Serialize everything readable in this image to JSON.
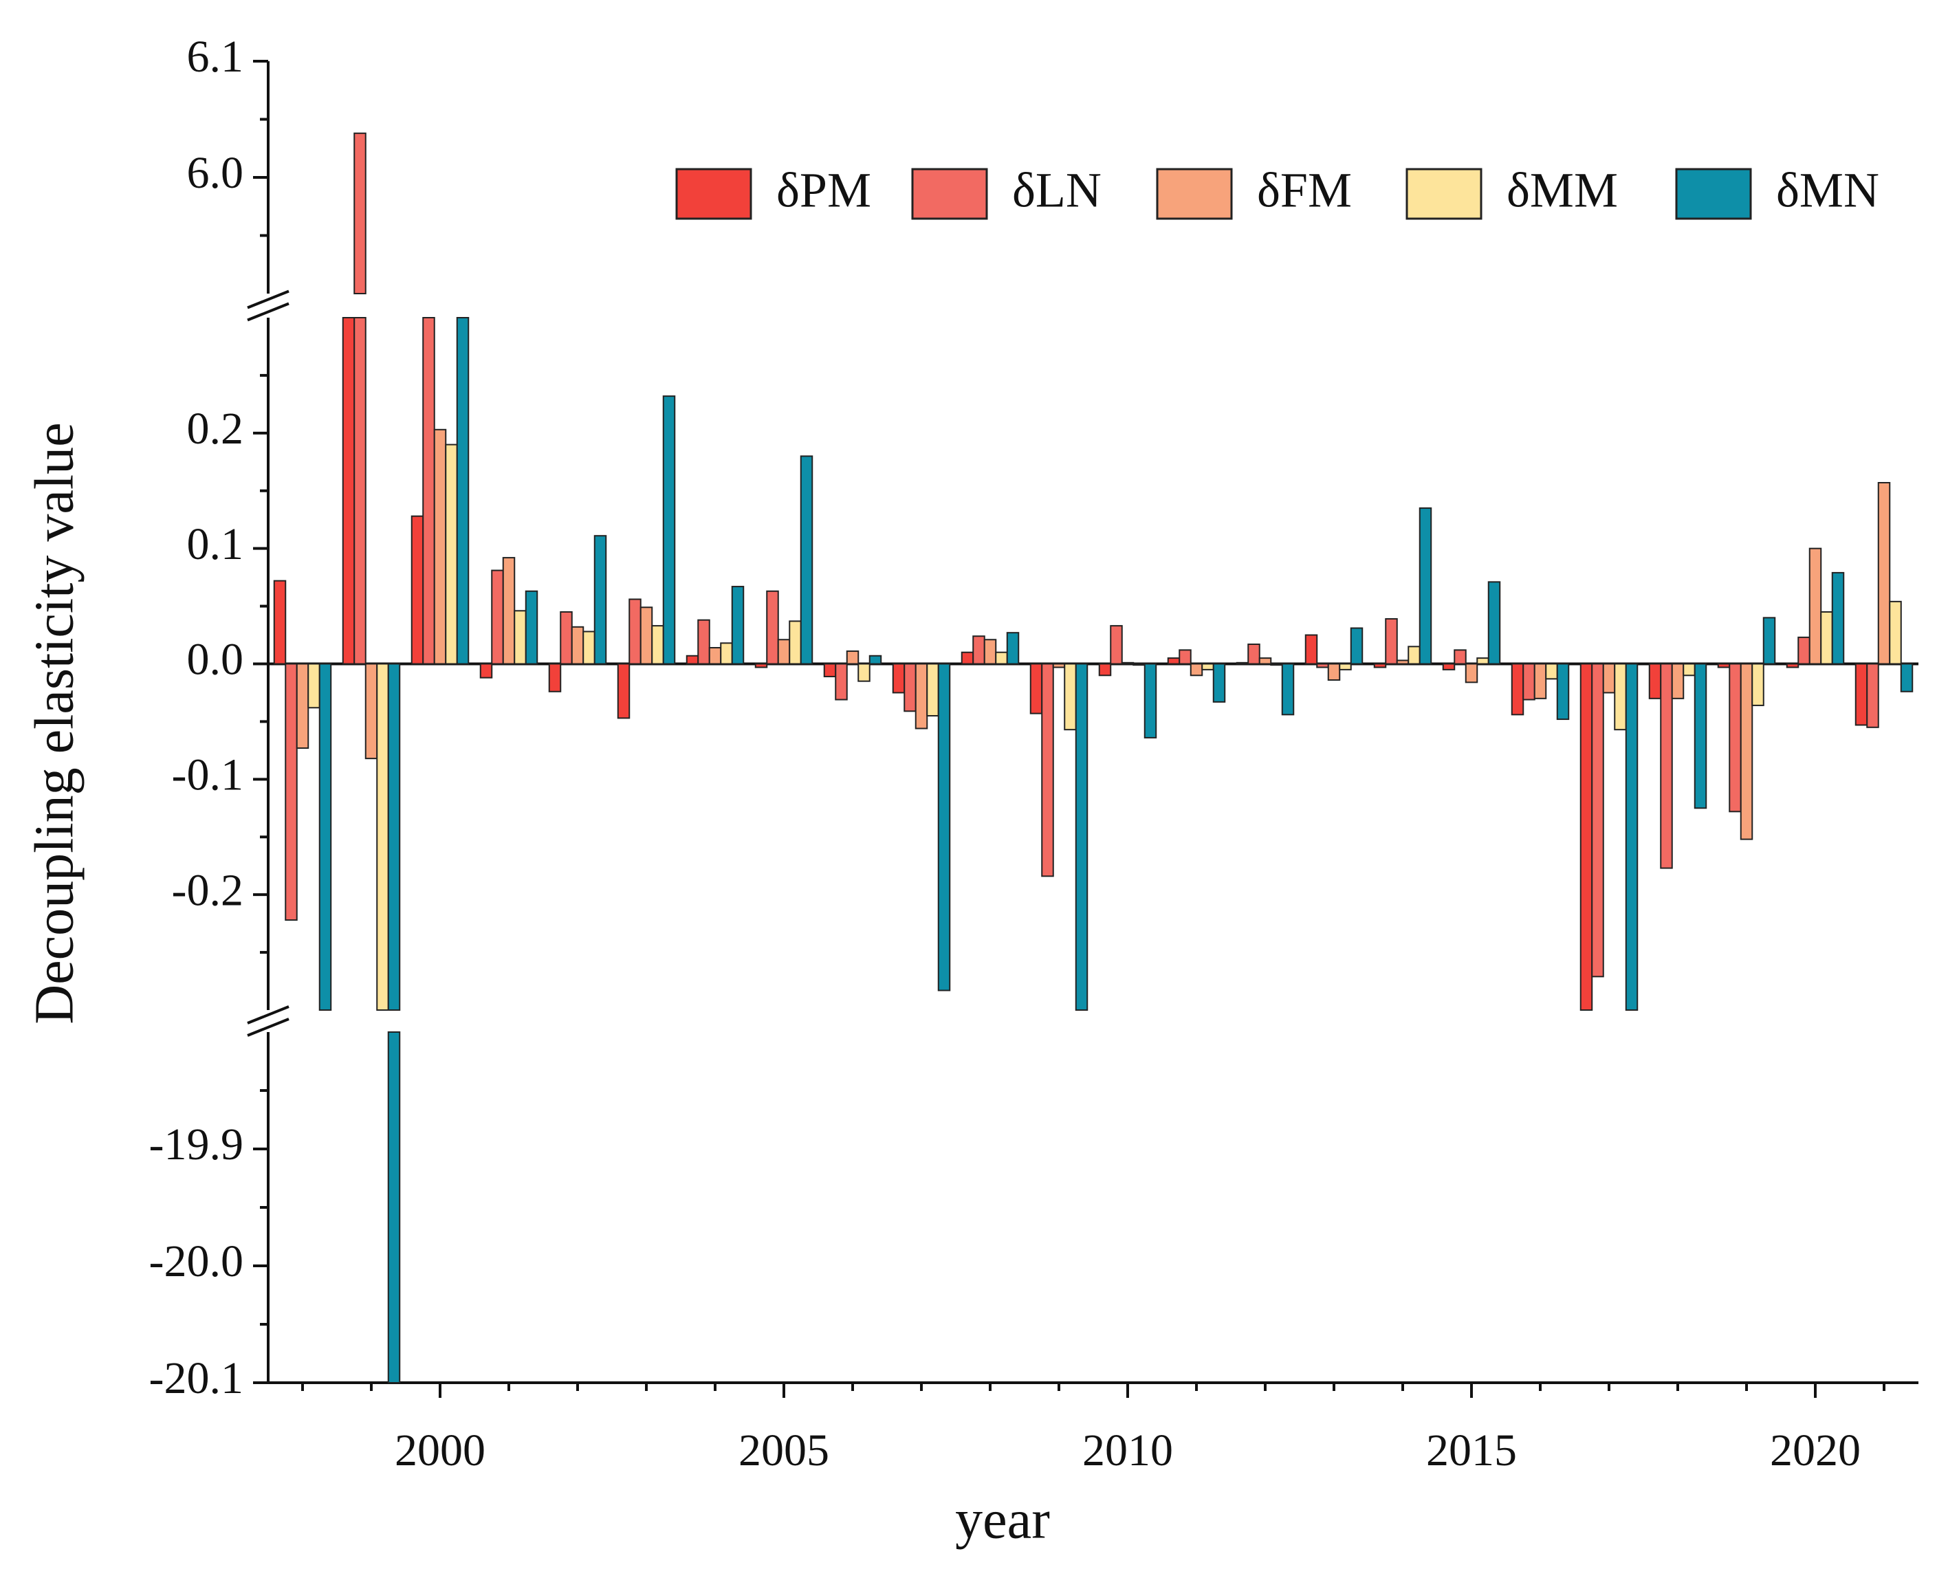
{
  "chart_data": {
    "type": "bar",
    "x_label": "year",
    "y_label": "Decoupling elasticity value",
    "x": [
      1998,
      1999,
      2000,
      2001,
      2002,
      2003,
      2004,
      2005,
      2006,
      2007,
      2008,
      2009,
      2010,
      2011,
      2012,
      2013,
      2014,
      2015,
      2016,
      2017,
      2018,
      2019,
      2020,
      2021
    ],
    "xlim": [
      1997.5,
      2021.5
    ],
    "xticks": [
      2000,
      2005,
      2010,
      2015,
      2020
    ],
    "xminorticks": [
      1998,
      1999,
      2001,
      2002,
      2003,
      2004,
      2006,
      2007,
      2008,
      2009,
      2011,
      2012,
      2013,
      2014,
      2016,
      2017,
      2018,
      2019,
      2021
    ],
    "y_segments": [
      {
        "ylim": [
          5.9,
          6.1
        ],
        "yticks": [
          {
            "value": 6.0,
            "label": "6.0"
          },
          6.1
        ],
        "yminorticks": [
          5.95,
          6.05
        ]
      },
      {
        "ylim": [
          -0.3,
          0.3
        ],
        "yticks": [
          -0.2,
          -0.1,
          {
            "value": 0,
            "label": "0.0"
          },
          0.1,
          0.2
        ],
        "yminorticks": [
          -0.25,
          -0.15,
          -0.05,
          0.05,
          0.15,
          0.25
        ]
      },
      {
        "ylim": [
          -20.1,
          -19.8
        ],
        "yticks": [
          -20.1,
          {
            "value": -20.0,
            "label": "-20.0"
          },
          -19.9
        ],
        "yminorticks": [
          -20.05,
          -19.95,
          -19.85
        ]
      }
    ],
    "legend": "top-right",
    "series": [
      {
        "name": "δPM",
        "color": "#f2413a",
        "values": [
          0.072,
          0.5,
          0.128,
          -0.012,
          -0.024,
          -0.047,
          0.007,
          -0.003,
          -0.011,
          -0.025,
          0.01,
          -0.043,
          -0.01,
          0.005,
          0.001,
          0.025,
          -0.003,
          -0.005,
          -0.044,
          -0.4,
          -0.03,
          -0.003,
          -0.003,
          -0.053
        ]
      },
      {
        "name": "δLN",
        "color": "#f26a62",
        "values": [
          -0.222,
          6.038,
          0.4,
          0.081,
          0.045,
          0.056,
          0.038,
          0.063,
          -0.031,
          -0.041,
          0.024,
          -0.184,
          0.033,
          0.012,
          0.017,
          -0.003,
          0.039,
          0.012,
          -0.031,
          -0.271,
          -0.177,
          -0.128,
          0.023,
          -0.055
        ]
      },
      {
        "name": "δFM",
        "color": "#f7a37b",
        "values": [
          -0.073,
          -0.082,
          0.203,
          0.092,
          0.032,
          0.049,
          0.014,
          0.021,
          0.011,
          -0.056,
          0.021,
          -0.003,
          0.001,
          -0.01,
          0.005,
          -0.014,
          0.003,
          -0.016,
          -0.03,
          -0.025,
          -0.03,
          -0.152,
          0.1,
          0.157
        ]
      },
      {
        "name": "δMM",
        "color": "#fde49b",
        "values": [
          -0.038,
          -0.4,
          0.19,
          0.046,
          0.028,
          0.033,
          0.018,
          0.037,
          -0.015,
          -0.045,
          0.01,
          -0.057,
          -0.001,
          -0.005,
          -0.001,
          -0.005,
          0.015,
          0.005,
          -0.013,
          -0.057,
          -0.01,
          -0.036,
          0.045,
          0.054
        ]
      },
      {
        "name": "δMN",
        "color": "#0e8fa8",
        "values": [
          -0.4,
          -20.13,
          0.4,
          0.063,
          0.111,
          0.232,
          0.067,
          0.18,
          0.007,
          -0.283,
          0.027,
          -0.4,
          -0.064,
          -0.033,
          -0.044,
          0.031,
          0.135,
          0.071,
          -0.048,
          -0.4,
          -0.125,
          0.04,
          0.079,
          -0.024
        ]
      }
    ]
  }
}
